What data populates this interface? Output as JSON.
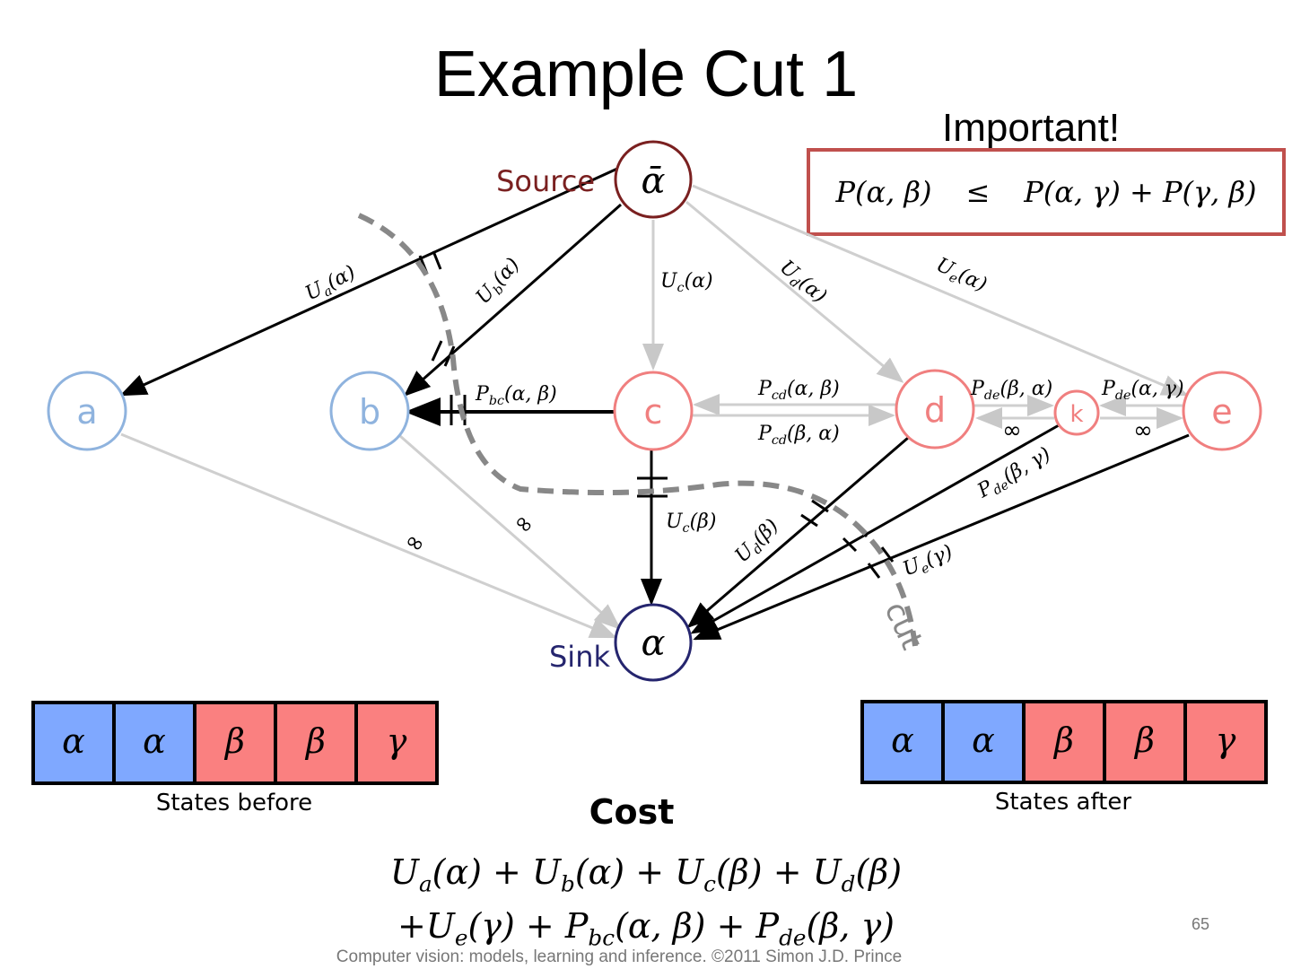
{
  "slide": {
    "title": "Example Cut 1",
    "important_label": "Important!",
    "inequality": {
      "lhs": "P(α, β)",
      "op": "≤",
      "rhs": "P(α, γ) + P(γ, β)"
    },
    "page_number": "65",
    "footer": "Computer vision: models, learning and inference.  ©2011 Simon J.D. Prince"
  },
  "colors": {
    "blue_node": "#8fb3de",
    "red_node": "#f07f7f",
    "source": "#7a2020",
    "sink": "#25256e",
    "state_blue": "#7fa8ff",
    "state_red": "#fa8080",
    "box_border": "#c0504d",
    "cut": "#888888"
  },
  "graph": {
    "source": {
      "label": "Source",
      "symbol": "ᾱ"
    },
    "sink": {
      "label": "Sink",
      "symbol": "α"
    },
    "nodes": [
      "a",
      "b",
      "c",
      "d",
      "k",
      "e"
    ],
    "cut_label": "cut",
    "edge_labels": [
      {
        "id": "ua",
        "sym": "U",
        "sub": "a",
        "arg": "(α)"
      },
      {
        "id": "ub",
        "sym": "U",
        "sub": "b",
        "arg": "(α)"
      },
      {
        "id": "uc-a",
        "sym": "U",
        "sub": "c",
        "arg": "(α)"
      },
      {
        "id": "ud-a",
        "sym": "U",
        "sub": "d",
        "arg": "(α)"
      },
      {
        "id": "ue-a",
        "sym": "U",
        "sub": "e",
        "arg": "(α)"
      },
      {
        "id": "pbc",
        "sym": "P",
        "sub": "bc",
        "arg": "(α, β)"
      },
      {
        "id": "pcd-ab",
        "sym": "P",
        "sub": "cd",
        "arg": "(α, β)"
      },
      {
        "id": "pcd-ba",
        "sym": "P",
        "sub": "cd",
        "arg": "(β, α)"
      },
      {
        "id": "pde-ba",
        "sym": "P",
        "sub": "de",
        "arg": "(β, α)"
      },
      {
        "id": "pde-ag",
        "sym": "P",
        "sub": "de",
        "arg": "(α, γ)"
      },
      {
        "id": "pde-bg",
        "sym": "P",
        "sub": "de",
        "arg": "(β, γ)"
      },
      {
        "id": "uc-b",
        "sym": "U",
        "sub": "c",
        "arg": "(β)"
      },
      {
        "id": "ud-b",
        "sym": "U",
        "sub": "d",
        "arg": "(β)"
      },
      {
        "id": "ue-g",
        "sym": "U",
        "sub": "e",
        "arg": "(γ)"
      }
    ],
    "infinity": "∞"
  },
  "states_before": {
    "caption": "States before",
    "values": [
      "α",
      "α",
      "β",
      "β",
      "γ"
    ]
  },
  "states_after": {
    "caption": "States after",
    "values": [
      "α",
      "α",
      "β",
      "β",
      "γ"
    ]
  },
  "cost": {
    "title": "Cost",
    "line1": [
      {
        "sym": "U",
        "sub": "a",
        "arg": "(α)"
      },
      {
        "sym": "+ U",
        "sub": "b",
        "arg": "(α)"
      },
      {
        "sym": "+ U",
        "sub": "c",
        "arg": "(β)"
      },
      {
        "sym": "+ U",
        "sub": "d",
        "arg": "(β)"
      }
    ],
    "line2": [
      {
        "sym": "+U",
        "sub": "e",
        "arg": "(γ)"
      },
      {
        "sym": "+ P",
        "sub": "bc",
        "arg": "(α, β)"
      },
      {
        "sym": "+ P",
        "sub": "de",
        "arg": "(β, γ)"
      }
    ]
  }
}
